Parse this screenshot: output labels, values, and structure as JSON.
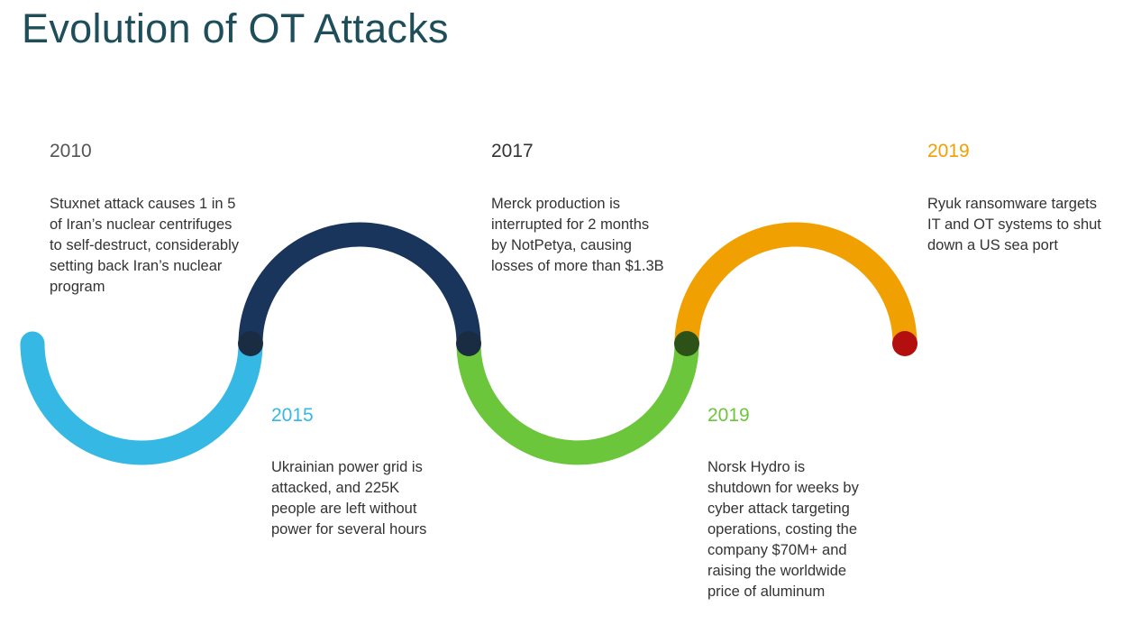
{
  "title": "Evolution of OT Attacks",
  "colors": {
    "title": "#1d4e5a",
    "segment_1": "#35b8e3",
    "segment_2": "#1a355b",
    "segment_3": "#6cc63c",
    "segment_4": "#f0a000",
    "junction_dark": "#1a2c42",
    "junction_green": "#2c5218",
    "end_dot": "#b30f0f"
  },
  "events": [
    {
      "year": "2010",
      "year_color": "#555555",
      "description": "Stuxnet attack causes 1 in 5\nof Iran’s nuclear centrifuges\nto self-destruct, considerably\nsetting back Iran’s nuclear\nprogram"
    },
    {
      "year": "2015",
      "year_color": "#35b8e3",
      "description": "Ukrainian power grid is\nattacked, and 225K\npeople are left without\npower for several hours"
    },
    {
      "year": "2017",
      "year_color": "#333333",
      "description": "Merck production is\ninterrupted for 2 months\nby NotPetya, causing\nlosses of more than $1.3B"
    },
    {
      "year": "2019",
      "year_color": "#6cc63c",
      "description": "Norsk Hydro is\nshutdown for weeks by\ncyber attack targeting\noperations, costing the\ncompany $70M+ and\nraising the worldwide\nprice of aluminum"
    },
    {
      "year": "2019",
      "year_color": "#f0a000",
      "description": "Ryuk ransomware targets\nIT and OT systems to shut\ndown a US sea port"
    }
  ]
}
